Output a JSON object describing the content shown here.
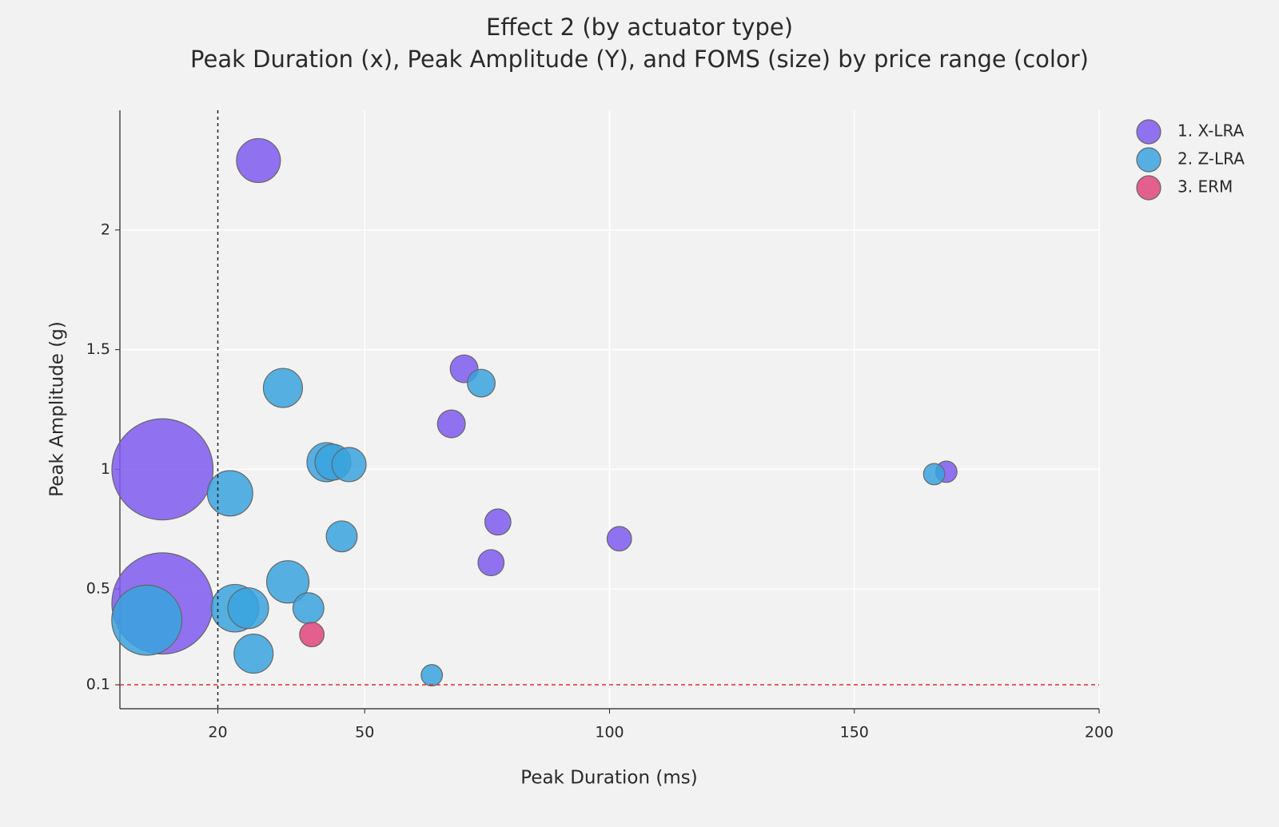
{
  "chart_data": {
    "type": "bubble",
    "title": "Effect 2 (by actuator type)",
    "subtitle": "Peak Duration (x), Peak Amplitude (Y), and FOMS (size) by price range (color)",
    "x_label": "Peak Duration (ms)",
    "y_label": "Peak Amplitude (g)",
    "xlim": [
      0,
      200
    ],
    "xticks": [
      20,
      50,
      100,
      150,
      200
    ],
    "ylim": [
      0,
      2.5
    ],
    "yticks": [
      0.1,
      0.5,
      1,
      1.5,
      2
    ],
    "grid": true,
    "legend": "top-right",
    "reference_lines": [
      {
        "axis": "x",
        "value": 20,
        "color": "#222222"
      },
      {
        "axis": "y",
        "value": 0.1,
        "color": "#e8262a"
      }
    ],
    "series": [
      {
        "name": "1. X-LRA",
        "color": "#7f5af0",
        "x": [
          28.3,
          70.3,
          67.7,
          8.7,
          8.7,
          77.2,
          75.8,
          102,
          168.8
        ],
        "values": [
          2.29,
          1.42,
          1.19,
          1.0,
          0.44,
          0.78,
          0.61,
          0.71,
          0.99
        ],
        "sizes": [
          29,
          11.6,
          11.6,
          154,
          154,
          10.2,
          10.2,
          9,
          6.8
        ]
      },
      {
        "name": "2. Z-LRA",
        "color": "#3aa3de",
        "x": [
          33.3,
          73.8,
          42.2,
          43.5,
          46.8,
          22.5,
          45.3,
          34.3,
          23.5,
          26.2,
          38.5,
          5.5,
          27.3,
          63.7,
          166.3
        ],
        "values": [
          1.34,
          1.36,
          1.03,
          1.03,
          1.02,
          0.9,
          0.72,
          0.53,
          0.42,
          0.42,
          0.42,
          0.37,
          0.23,
          0.14,
          0.98
        ],
        "sizes": [
          23,
          11.6,
          23,
          19.4,
          17.6,
          31,
          14.4,
          27,
          34,
          25,
          14.4,
          74,
          23,
          6.8,
          6.8
        ]
      },
      {
        "name": "3. ERM",
        "color": "#e0457b",
        "x": [
          39.2
        ],
        "values": [
          0.31
        ],
        "sizes": [
          9
        ]
      }
    ]
  }
}
